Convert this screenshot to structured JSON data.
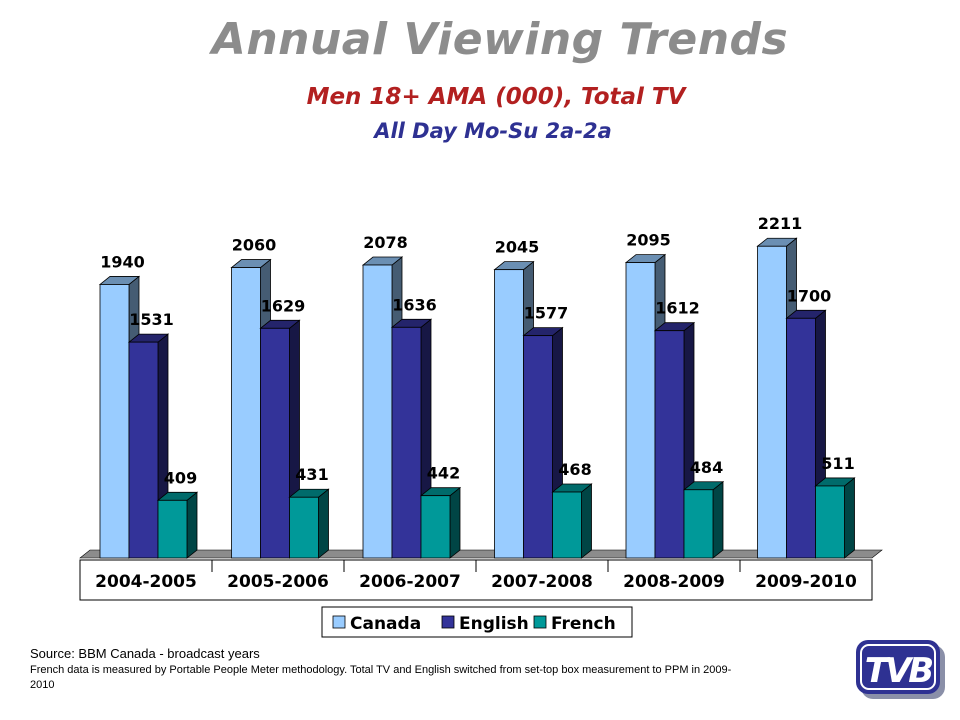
{
  "header": {
    "title": "Annual Viewing Trends",
    "subtitle_line1": "Men 18+ AMA (000), Total TV",
    "subtitle_line2": "All Day Mo-Su 2a-2a"
  },
  "chart_data": {
    "type": "bar",
    "categories": [
      "2004-2005",
      "2005-2006",
      "2006-2007",
      "2007-2008",
      "2008-2009",
      "2009-2010"
    ],
    "series": [
      {
        "name": "Canada",
        "values": [
          1940,
          2060,
          2078,
          2045,
          2095,
          2211
        ],
        "color": "#99ccff"
      },
      {
        "name": "English",
        "values": [
          1531,
          1629,
          1636,
          1577,
          1612,
          1700
        ],
        "color": "#333399"
      },
      {
        "name": "French",
        "values": [
          409,
          431,
          442,
          468,
          484,
          511
        ],
        "color": "#009999"
      }
    ],
    "ylim": [
      0,
      2500
    ],
    "grid": false,
    "legend_placement": "bottom",
    "style": "3d-column"
  },
  "footer": {
    "source": "Source: BBM Canada - broadcast years",
    "note": "French data is measured by Portable People Meter methodology. Total TV and English switched from set-top box measurement  to PPM in 2009-2010",
    "logo_text": "TVB"
  }
}
